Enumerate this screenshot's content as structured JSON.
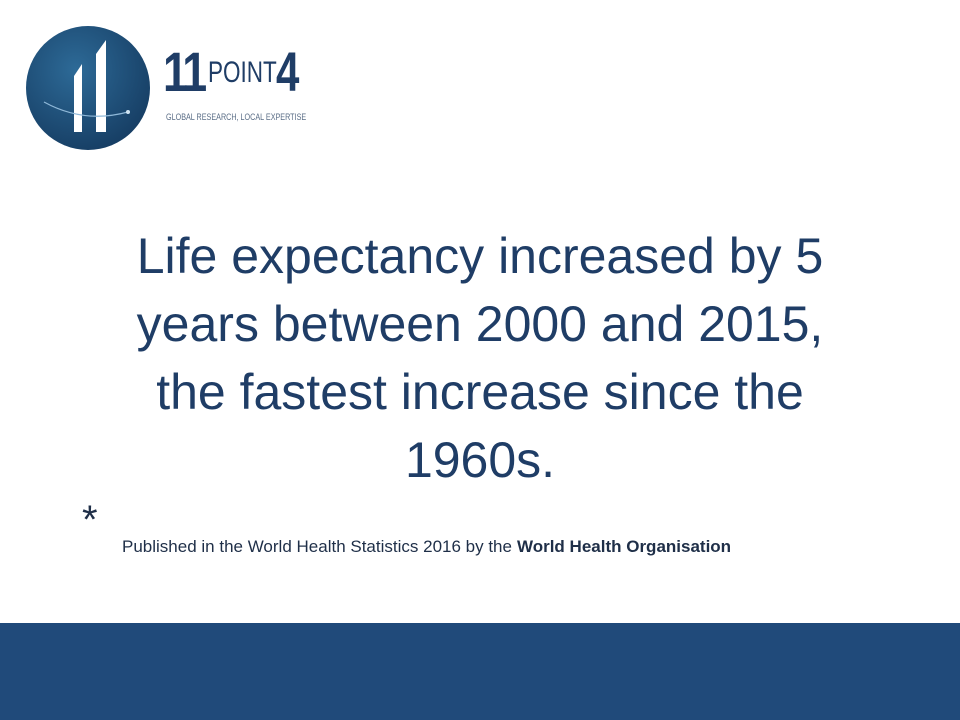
{
  "logo": {
    "number": "11",
    "word": "POINT",
    "digit": "4",
    "tagline": "GLOBAL RESEARCH, LOCAL EXPERTISE"
  },
  "headline": [
    "Life expectancy increased by 5",
    "years between 2000 and 2015,",
    "the fastest increase since the",
    "1960s."
  ],
  "footnote": {
    "marker": "*",
    "text": "Published in the World Health Statistics 2016 by the",
    "source": "World Health Organisation"
  }
}
